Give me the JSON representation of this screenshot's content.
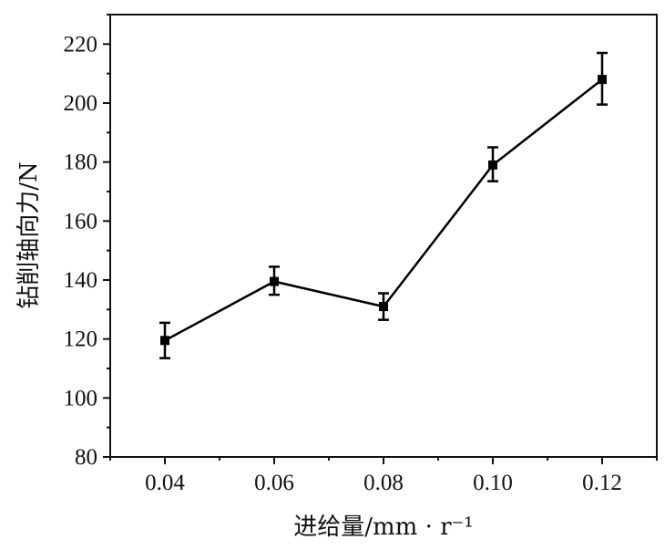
{
  "chart_data": {
    "type": "line",
    "xlabel": "进给量/mm · r⁻¹",
    "ylabel": "钻削轴向力/N",
    "x": [
      0.04,
      0.06,
      0.08,
      0.1,
      0.12
    ],
    "x_tick_labels": [
      "0.04",
      "0.06",
      "0.08",
      "0.10",
      "0.12"
    ],
    "xlim": [
      0.03,
      0.13
    ],
    "ylim": [
      80,
      230
    ],
    "y_ticks": [
      80,
      100,
      120,
      140,
      160,
      180,
      200,
      220
    ],
    "y_tick_labels": [
      "80",
      "100",
      "120",
      "140",
      "160",
      "180",
      "200",
      "220"
    ],
    "series": [
      {
        "values": [
          119.5,
          139.5,
          131,
          179,
          208
        ],
        "error_low": [
          113.5,
          135,
          126.5,
          173.5,
          199.5
        ],
        "error_high": [
          125.5,
          144.5,
          135.5,
          185,
          217
        ],
        "color": "#000000",
        "marker": "square"
      }
    ],
    "grid": false,
    "legend": "none"
  }
}
